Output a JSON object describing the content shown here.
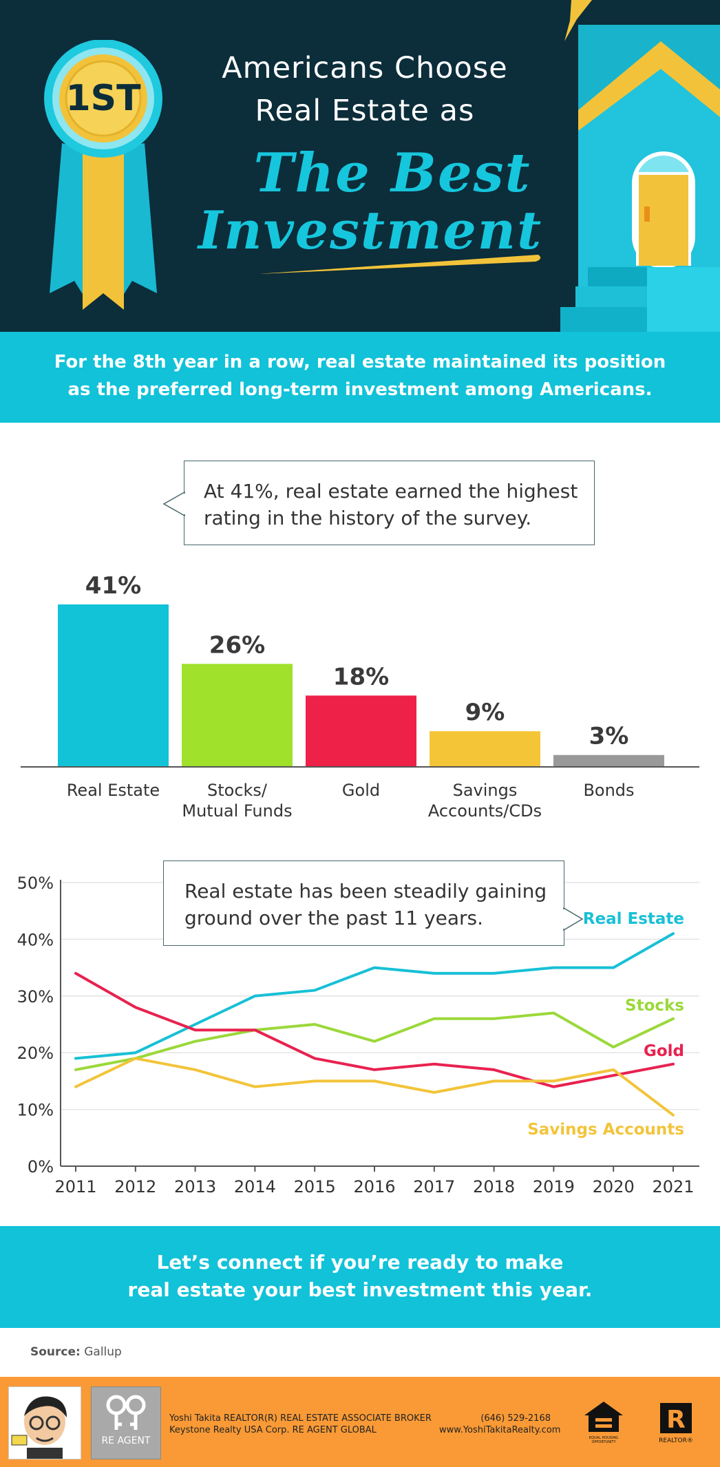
{
  "header": {
    "ribbon_label": "1ST",
    "title_line1": "Americans Choose",
    "title_line2": "Real Estate as",
    "title_big1": "The Best",
    "title_big2": "Investment"
  },
  "intro": {
    "line1": "For the 8th year in a row, real estate maintained its position",
    "line2": "as the preferred long-term investment among Americans."
  },
  "bar_callout": {
    "line1": "At 41%, real estate earned the highest",
    "line2": "rating in the history of the survey."
  },
  "line_callout": {
    "line1": "Real estate has been steadily gaining",
    "line2": "ground over the past 11 years."
  },
  "cta": {
    "line1": "Let’s connect if you’re ready to make",
    "line2": "real estate your best investment this year."
  },
  "source": {
    "label": "Source:",
    "value": "Gallup"
  },
  "footer": {
    "agent_line1": "Yoshi Takita REALTOR(R) REAL ESTATE ASSOCIATE BROKER",
    "agent_line2": "Keystone Realty USA Corp.  RE AGENT GLOBAL",
    "phone": "(646) 529-2168",
    "website": "www.YoshiTakitaRealty.com",
    "reagent_logo": "RE AGENT",
    "equal_housing": "EQUAL HOUSING OPPORTUNITY",
    "realtor_logo": "REALTOR®"
  },
  "chart_data": [
    {
      "type": "bar",
      "categories": [
        [
          "Real Estate"
        ],
        [
          "Stocks/",
          "Mutual Funds"
        ],
        [
          "Gold"
        ],
        [
          "Savings",
          "Accounts/CDs"
        ],
        [
          "Bonds"
        ]
      ],
      "values": [
        41,
        26,
        18,
        9,
        3
      ],
      "value_labels": [
        "41%",
        "26%",
        "18%",
        "9%",
        "3%"
      ],
      "colors": [
        "#12c3d8",
        "#9fe12b",
        "#ee2149",
        "#f4c637",
        "#999999"
      ],
      "ylim": [
        0,
        41
      ]
    },
    {
      "type": "line",
      "x": [
        "2011",
        "2012",
        "2013",
        "2014",
        "2015",
        "2016",
        "2017",
        "2018",
        "2019",
        "2020",
        "2021"
      ],
      "y_ticks": [
        "0%",
        "10%",
        "20%",
        "30%",
        "40%",
        "50%"
      ],
      "ylim": [
        0,
        50
      ],
      "grid": true,
      "series": [
        {
          "name": "Real Estate",
          "color": "#17c0d6",
          "values": [
            19,
            20,
            25,
            30,
            31,
            35,
            34,
            34,
            35,
            35,
            41
          ]
        },
        {
          "name": "Stocks",
          "color": "#9bd83a",
          "values": [
            17,
            19,
            22,
            24,
            25,
            22,
            26,
            26,
            27,
            21,
            26
          ]
        },
        {
          "name": "Gold",
          "color": "#e8224f",
          "values": [
            34,
            28,
            24,
            24,
            19,
            17,
            18,
            17,
            14,
            16,
            18
          ]
        },
        {
          "name": "Savings Accounts",
          "color": "#f2c43a",
          "values": [
            14,
            19,
            17,
            14,
            15,
            15,
            13,
            15,
            15,
            17,
            9
          ]
        }
      ]
    }
  ]
}
